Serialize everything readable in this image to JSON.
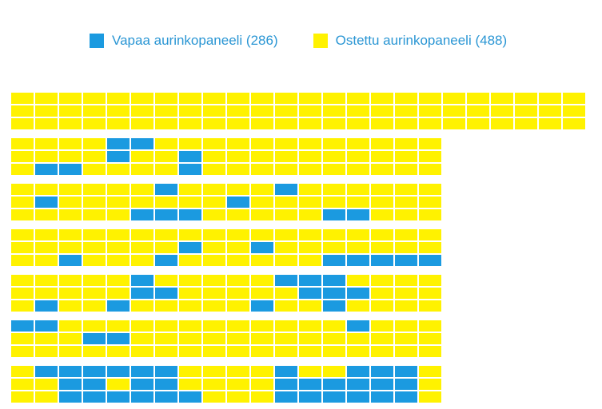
{
  "colors": {
    "free": "#1b9ae0",
    "purchased": "#fff200"
  },
  "legend": {
    "free_label": "Vapaa aurinkopaneeli (286)",
    "purchased_label": "Ostettu aurinkopaneeli (488)"
  },
  "blocks": [
    {
      "cols": 24,
      "rows": [
        "........................",
        "........................",
        "........................"
      ]
    },
    {
      "cols": 18,
      "rows": [
        "....##............",
        "....#..#..........",
        ".##....#.........."
      ]
    },
    {
      "cols": 18,
      "rows": [
        "......#....#......",
        ".#.......#........",
        ".....###.....##..."
      ]
    },
    {
      "cols": 18,
      "rows": [
        "..................",
        ".......#..#.......",
        "..#...#......#####"
      ]
    },
    {
      "cols": 18,
      "rows": [
        ".....#.....###....",
        ".....##.....###...",
        ".#..#.....#..#...."
      ]
    },
    {
      "cols": 18,
      "rows": [
        "##............#...",
        "...##.............",
        ".................."
      ]
    },
    {
      "cols": 18,
      "rows": [
        ".######....#..###.",
        "..##.##....######.",
        "..######...######."
      ]
    }
  ]
}
